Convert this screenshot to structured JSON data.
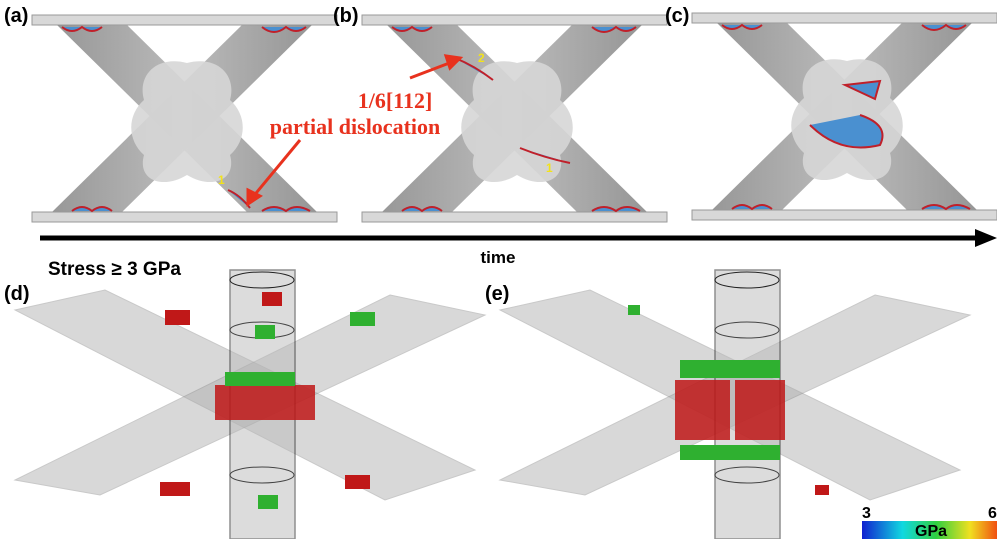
{
  "panels": [
    {
      "label": "(a)"
    },
    {
      "label": "(b)"
    },
    {
      "label": "(c)"
    },
    {
      "label": "(d)"
    },
    {
      "label": "(e)"
    }
  ],
  "annotations": {
    "burgers": "1/6[112]",
    "dislocation": "partial dislocation",
    "markers": [
      "1",
      "2",
      "1"
    ]
  },
  "axis": {
    "label": "time"
  },
  "stress_label": "Stress ≥ 3 GPa",
  "colorbar": {
    "min": 3,
    "unit": "GPa",
    "max": 6
  }
}
